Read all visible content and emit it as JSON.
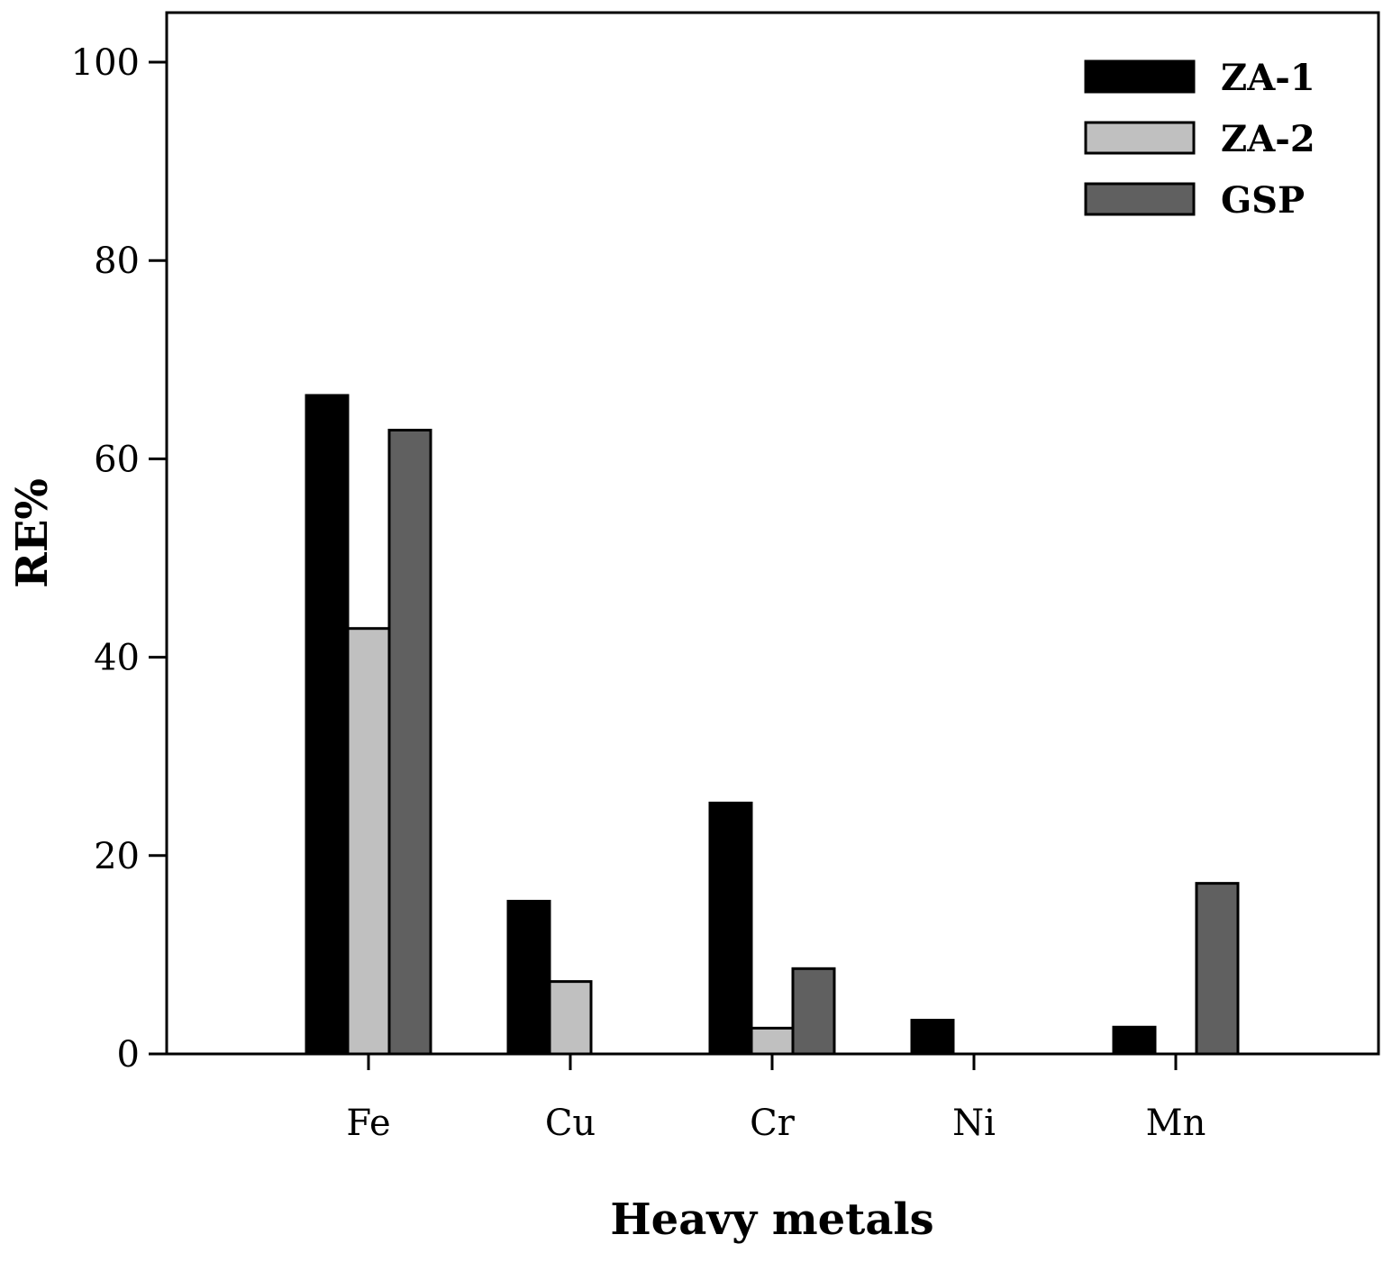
{
  "chart_data": {
    "type": "bar",
    "title": "",
    "xlabel": "Heavy metals",
    "ylabel": "RE%",
    "ylim": [
      0,
      105
    ],
    "yticks": [
      0,
      20,
      40,
      60,
      80,
      100
    ],
    "categories": [
      "Fe",
      "Cu",
      "Cr",
      "Ni",
      "Mn"
    ],
    "series": [
      {
        "name": "ZA-1",
        "color": "#000000",
        "values": [
          66.4,
          15.4,
          25.3,
          3.4,
          2.7
        ]
      },
      {
        "name": "ZA-2",
        "color": "#c0c0c0",
        "values": [
          42.9,
          7.3,
          2.6,
          0,
          0
        ]
      },
      {
        "name": "GSP",
        "color": "#606060",
        "values": [
          62.9,
          0,
          8.6,
          0,
          17.2
        ]
      }
    ],
    "legend_position": "top-right",
    "grid": false
  }
}
